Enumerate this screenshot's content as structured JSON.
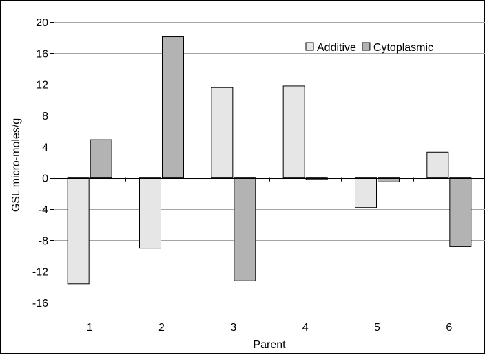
{
  "chart_data": {
    "type": "bar",
    "title": "",
    "xlabel": "Parent",
    "ylabel": "GSL micro-moles/g",
    "categories": [
      "1",
      "2",
      "3",
      "4",
      "5",
      "6"
    ],
    "ylim": [
      -16,
      20
    ],
    "yticks": [
      "20",
      "16",
      "12",
      "8",
      "4",
      "0",
      "-4",
      "-8",
      "-12",
      "-16"
    ],
    "grid": true,
    "legend_position": "top-right",
    "series": [
      {
        "name": "Additive",
        "color": "#e6e6e6",
        "values": [
          -13.6,
          -9.0,
          11.6,
          11.8,
          -3.8,
          3.3
        ]
      },
      {
        "name": "Cytoplasmic",
        "color": "#b3b3b3",
        "values": [
          4.9,
          18.1,
          -13.2,
          -0.2,
          -0.5,
          -8.8
        ]
      }
    ]
  }
}
